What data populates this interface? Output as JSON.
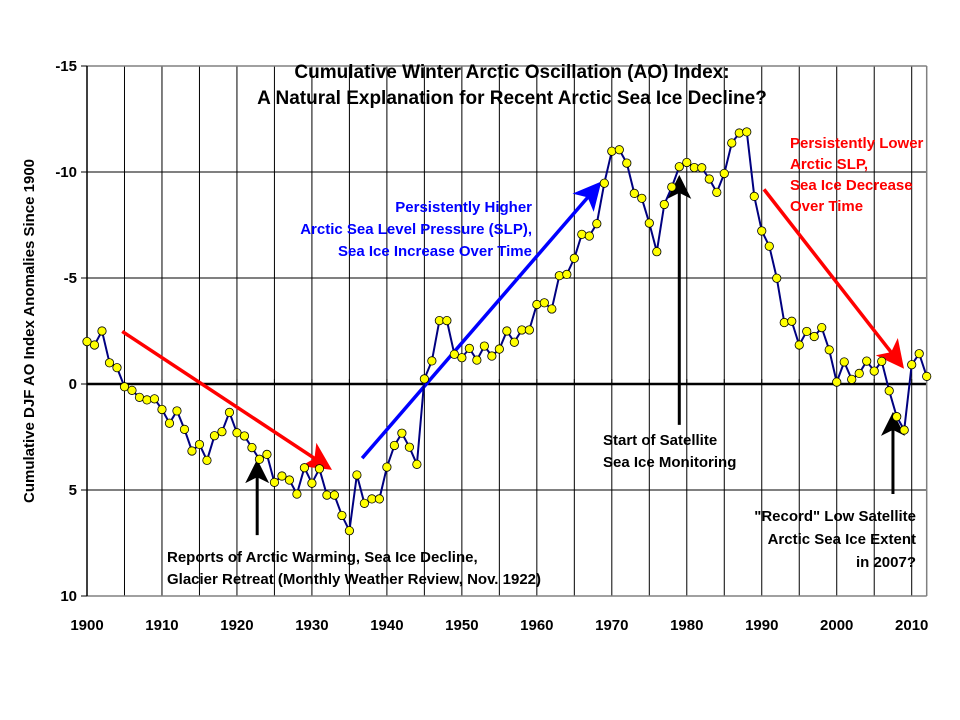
{
  "chart_data": {
    "type": "line",
    "title": [
      "Cumulative Winter Arctic Oscillation (AO) Index:",
      "A Natural Explanation for Recent Arctic Sea Ice Decline?"
    ],
    "xlabel": "",
    "ylabel": "Cumulative DJF AO Index Anomalies Since 1900",
    "xlim": [
      1900,
      2012
    ],
    "ylim": [
      -15,
      10
    ],
    "y_inverted": true,
    "grid": "vertical every 5 years; horizontal every 5 units",
    "x_ticks": [
      1900,
      1910,
      1920,
      1930,
      1940,
      1950,
      1960,
      1970,
      1980,
      1990,
      2000,
      2010
    ],
    "x_tick_labels": [
      "1900",
      "1910",
      "1920",
      "1930",
      "1940",
      "1950",
      "1960",
      "1970",
      "1980",
      "1990",
      "2000",
      "2010"
    ],
    "y_ticks": [
      -15,
      -10,
      -5,
      0,
      5,
      10
    ],
    "y_tick_labels": [
      "-15",
      "-10",
      "-5",
      "0",
      "5",
      "10"
    ],
    "series": [
      {
        "name": "Cumulative DJF AO Index",
        "line_color": "#000080",
        "marker_color": "#FFFF00",
        "x": [
          1900,
          1901,
          1902,
          1903,
          1904,
          1905,
          1906,
          1907,
          1908,
          1909,
          1910,
          1911,
          1912,
          1913,
          1914,
          1915,
          1916,
          1917,
          1918,
          1919,
          1920,
          1921,
          1922,
          1923,
          1924,
          1925,
          1926,
          1927,
          1928,
          1929,
          1930,
          1931,
          1932,
          1933,
          1934,
          1935,
          1936,
          1937,
          1938,
          1939,
          1940,
          1941,
          1942,
          1943,
          1944,
          1945,
          1946,
          1947,
          1948,
          1949,
          1950,
          1951,
          1952,
          1953,
          1954,
          1955,
          1956,
          1957,
          1958,
          1959,
          1960,
          1961,
          1962,
          1963,
          1964,
          1965,
          1966,
          1967,
          1968,
          1969,
          1970,
          1971,
          1972,
          1973,
          1974,
          1975,
          1976,
          1977,
          1978,
          1979,
          1980,
          1981,
          1982,
          1983,
          1984,
          1985,
          1986,
          1987,
          1988,
          1989,
          1990,
          1991,
          1992,
          1993,
          1994,
          1995,
          1996,
          1997,
          1998,
          1999,
          2000,
          2001,
          2002,
          2003,
          2004,
          2005,
          2006,
          2007,
          2008,
          2009,
          2010,
          2011,
          2012
        ],
        "y": [
          -2.0,
          -1.84,
          -2.5,
          -1.0,
          -0.77,
          0.13,
          0.3,
          0.63,
          0.75,
          0.7,
          1.2,
          1.85,
          1.27,
          2.14,
          3.16,
          2.85,
          3.6,
          2.44,
          2.25,
          1.34,
          2.3,
          2.45,
          3.0,
          3.55,
          3.32,
          4.64,
          4.34,
          4.53,
          5.19,
          3.95,
          4.68,
          4.0,
          5.24,
          5.24,
          6.2,
          6.92,
          4.29,
          5.63,
          5.42,
          5.42,
          3.92,
          2.9,
          2.32,
          2.98,
          3.79,
          -0.24,
          -1.09,
          -2.99,
          -2.99,
          -1.4,
          -1.24,
          -1.68,
          -1.13,
          -1.79,
          -1.32,
          -1.65,
          -2.5,
          -1.97,
          -2.55,
          -2.55,
          -3.75,
          -3.83,
          -3.54,
          -5.11,
          -5.17,
          -5.93,
          -7.06,
          -6.98,
          -7.56,
          -9.47,
          -10.98,
          -11.05,
          -10.42,
          -8.99,
          -8.76,
          -7.59,
          -6.24,
          -8.47,
          -9.29,
          -10.25,
          -10.45,
          -10.21,
          -10.2,
          -9.67,
          -9.04,
          -9.93,
          -11.37,
          -11.84,
          -11.89,
          -8.85,
          -7.22,
          -6.5,
          -4.99,
          -2.9,
          -2.96,
          -1.84,
          -2.48,
          -2.24,
          -2.66,
          -1.61,
          -0.09,
          -1.04,
          -0.22,
          -0.5,
          -1.08,
          -0.61,
          -1.07,
          0.32,
          1.54,
          2.17,
          -0.91,
          -1.43,
          -0.36
        ]
      }
    ],
    "annotations": [
      {
        "id": "higher-slp",
        "color": "#0000FF",
        "lines": [
          "Persistently Higher",
          "Arctic Sea Level Pressure (SLP),",
          "Sea Ice Increase Over Time"
        ],
        "arrow": {
          "from": [
            1936.7,
            3.5
          ],
          "to": [
            1968.0,
            -9.3
          ]
        }
      },
      {
        "id": "lower-slp",
        "color": "#FF0000",
        "lines": [
          "Persistently Lower",
          "Arctic SLP,",
          "Sea Ice Decrease",
          "Over Time"
        ],
        "arrow": {
          "from": [
            1990.3,
            -9.18
          ],
          "to": [
            2008.4,
            -0.98
          ]
        }
      },
      {
        "id": "early-decline",
        "color": "#FF0000",
        "lines": [],
        "arrow": {
          "from": [
            1904.7,
            -2.48
          ],
          "to": [
            1931.9,
            3.87
          ]
        }
      },
      {
        "id": "reports-1922",
        "color": "#000000",
        "lines": [
          "Reports of Arctic Warming, Sea Ice Decline,",
          "Glacier Retreat (Monthly Weather Review, Nov. 1922)"
        ],
        "arrow": {
          "from": [
            1922.7,
            7.13
          ],
          "to": [
            1922.7,
            3.83
          ]
        }
      },
      {
        "id": "satellite-start",
        "color": "#000000",
        "lines": [
          "Start of Satellite",
          "Sea Ice Monitoring"
        ],
        "arrow": {
          "from": [
            1979.0,
            1.93
          ],
          "to": [
            1979.0,
            -9.58
          ]
        }
      },
      {
        "id": "record-low-2007",
        "color": "#000000",
        "lines": [
          "\"Record\" Low Satellite",
          "Arctic Sea Ice Extent",
          "in 2007?"
        ],
        "arrow": {
          "from": [
            2007.5,
            5.19
          ],
          "to": [
            2007.5,
            1.6
          ]
        }
      }
    ]
  }
}
